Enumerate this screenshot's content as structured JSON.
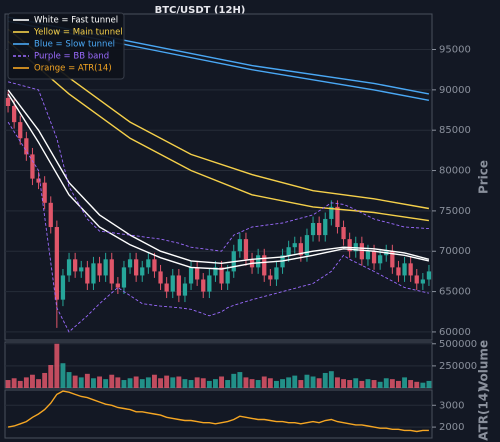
{
  "chart_data": [
    {
      "type": "candlestick",
      "title": "BTC/USDT (12H)",
      "ylabel": "Price",
      "ylim": [
        59000,
        99400
      ],
      "yticks": [
        60000,
        65000,
        70000,
        75000,
        80000,
        85000,
        90000,
        95000
      ],
      "grid": true,
      "up_color": "#26a69a",
      "down_color": "#e0566a",
      "legend": "upper left",
      "open": [
        89000,
        88000,
        86000,
        84000,
        82000,
        79000,
        78500,
        76000,
        73000,
        64000,
        67000,
        69000,
        67500,
        68000,
        66000,
        68500,
        67000,
        69000,
        66000,
        65500,
        68000,
        69000,
        67000,
        68000,
        69000,
        67500,
        66000,
        65000,
        67000,
        64500,
        66000,
        68000,
        66500,
        65000,
        67000,
        68000,
        66000,
        67500,
        70000,
        71500,
        69000,
        68000,
        69500,
        67000,
        66500,
        68000,
        69500,
        70500,
        71000,
        69500,
        72000,
        73500,
        72000,
        74000,
        75500,
        73000,
        71500,
        70000,
        71000,
        69000,
        70000,
        68500,
        69500,
        70000,
        68000,
        67000,
        68500,
        67000,
        66000,
        66500
      ],
      "high": [
        89800,
        88800,
        86800,
        84800,
        82800,
        79800,
        79300,
        76800,
        73800,
        67800,
        69800,
        69800,
        68800,
        68800,
        69300,
        69300,
        69800,
        69800,
        66800,
        68800,
        69800,
        69800,
        68800,
        69800,
        69800,
        68300,
        66800,
        67800,
        67800,
        66800,
        68800,
        68800,
        67300,
        67800,
        68800,
        68800,
        68300,
        70800,
        72300,
        72300,
        69800,
        70300,
        70300,
        67800,
        68800,
        70300,
        71300,
        71800,
        71800,
        72800,
        74300,
        74300,
        74800,
        76300,
        76300,
        73800,
        72300,
        71800,
        71800,
        70800,
        70800,
        70300,
        70800,
        70800,
        68800,
        69300,
        69300,
        67800,
        67300,
        68300
      ],
      "low": [
        87200,
        85200,
        83200,
        81200,
        78200,
        77700,
        75200,
        72200,
        60500,
        63200,
        66200,
        66700,
        66700,
        65200,
        65200,
        66200,
        66200,
        65200,
        64700,
        64700,
        67200,
        66200,
        66200,
        67200,
        66700,
        65200,
        64200,
        64200,
        63700,
        63700,
        65200,
        65700,
        64200,
        64200,
        66200,
        65200,
        65200,
        66700,
        69200,
        68200,
        67200,
        67200,
        66200,
        65700,
        65700,
        67200,
        68700,
        69700,
        68700,
        68700,
        71200,
        71200,
        71200,
        73200,
        72200,
        70700,
        69200,
        69200,
        68200,
        68200,
        67700,
        67700,
        68700,
        67200,
        66200,
        66200,
        66200,
        65200,
        65200,
        65700
      ],
      "close": [
        88000,
        86000,
        84000,
        82000,
        79000,
        78500,
        76000,
        73000,
        64000,
        67000,
        69000,
        67500,
        68000,
        66000,
        68500,
        67000,
        69000,
        66000,
        65500,
        68000,
        69000,
        67000,
        68000,
        69000,
        67500,
        66000,
        65000,
        67000,
        64500,
        66000,
        68000,
        66500,
        65000,
        67000,
        68000,
        66000,
        67500,
        70000,
        71500,
        69000,
        68000,
        69500,
        67000,
        66500,
        68000,
        69500,
        70500,
        71000,
        69500,
        72000,
        73500,
        72000,
        74000,
        75500,
        73000,
        71500,
        70000,
        71000,
        69000,
        70000,
        68500,
        69500,
        70000,
        68000,
        67000,
        68500,
        67000,
        66000,
        66500,
        67500
      ],
      "series": [
        {
          "name": "White = Fast tunnel",
          "color": "#ffffff",
          "dashed": false,
          "x": [
            0,
            5,
            10,
            15,
            20,
            25,
            30,
            35,
            40,
            45,
            50,
            55,
            60,
            65,
            69
          ],
          "upper": [
            90000,
            85000,
            78500,
            74500,
            72000,
            70000,
            68800,
            68500,
            69000,
            69300,
            70000,
            70500,
            70300,
            69800,
            69000
          ],
          "lower": [
            89500,
            83500,
            77000,
            73000,
            70800,
            69200,
            68000,
            67800,
            68500,
            68800,
            69500,
            70300,
            70000,
            69500,
            68800
          ]
        },
        {
          "name": "Yellow = Main tunnel",
          "color": "#f5d04a",
          "dashed": false,
          "x": [
            0,
            10,
            20,
            30,
            40,
            50,
            60,
            69
          ],
          "upper": [
            97500,
            91500,
            86000,
            82000,
            79500,
            77500,
            76500,
            75300
          ],
          "lower": [
            96000,
            89500,
            84000,
            80000,
            77000,
            75500,
            74800,
            73800
          ]
        },
        {
          "name": "Blue = Slow tunnel",
          "color": "#4aa8f5",
          "dashed": false,
          "x": [
            0,
            20,
            40,
            60,
            69
          ],
          "upper": [
            99000,
            96000,
            93000,
            90800,
            89500
          ],
          "lower": [
            98500,
            95500,
            92500,
            90000,
            88700
          ]
        },
        {
          "name": "Purple = BB band",
          "color": "#9b6bff",
          "dashed": true,
          "x": [
            0,
            5,
            8,
            10,
            13,
            15,
            18,
            20,
            22,
            25,
            28,
            30,
            33,
            35,
            36,
            37,
            40,
            45,
            50,
            53,
            55,
            56,
            60,
            65,
            69
          ],
          "upper": [
            91000,
            90000,
            84000,
            78000,
            74000,
            72500,
            72200,
            72000,
            71800,
            71500,
            71000,
            70500,
            70200,
            70000,
            71000,
            72000,
            73000,
            73500,
            74500,
            76000,
            75800,
            75500,
            74000,
            73000,
            72800
          ],
          "lower": [
            86000,
            80000,
            63000,
            60000,
            62000,
            63500,
            65500,
            64500,
            63500,
            63200,
            63000,
            62800,
            62000,
            62500,
            63000,
            63300,
            64000,
            65000,
            66000,
            67500,
            69500,
            69000,
            67500,
            65500,
            64800
          ]
        }
      ]
    },
    {
      "type": "bar",
      "ylabel": "Volume",
      "ylim": [
        0,
        520000
      ],
      "yticks": [
        {
          "value": 250000,
          "label": "250000"
        },
        {
          "value": 500000,
          "label": "500000"
        }
      ],
      "values": [
        90000,
        110000,
        80000,
        120000,
        150000,
        100000,
        170000,
        260000,
        500000,
        280000,
        180000,
        140000,
        120000,
        160000,
        110000,
        130000,
        100000,
        150000,
        120000,
        90000,
        110000,
        130000,
        100000,
        120000,
        150000,
        110000,
        140000,
        120000,
        130000,
        100000,
        90000,
        120000,
        110000,
        80000,
        100000,
        130000,
        90000,
        160000,
        180000,
        120000,
        100000,
        90000,
        130000,
        110000,
        80000,
        100000,
        120000,
        140000,
        90000,
        150000,
        130000,
        110000,
        170000,
        190000,
        120000,
        100000,
        90000,
        110000,
        80000,
        100000,
        90000,
        70000,
        110000,
        100000,
        80000,
        120000,
        90000,
        70000,
        60000,
        80000
      ]
    },
    {
      "type": "line",
      "ylabel": "ATR(14)",
      "ylim": [
        1500,
        3700
      ],
      "yticks": [
        2000,
        3000
      ],
      "series": [
        {
          "name": "Orange = ATR(14)",
          "color": "#f5a623",
          "values": [
            2000,
            2050,
            2150,
            2250,
            2450,
            2600,
            2800,
            3100,
            3500,
            3650,
            3600,
            3500,
            3400,
            3350,
            3250,
            3150,
            3050,
            3000,
            2900,
            2850,
            2800,
            2700,
            2700,
            2650,
            2600,
            2550,
            2450,
            2400,
            2350,
            2300,
            2300,
            2250,
            2200,
            2200,
            2150,
            2200,
            2250,
            2350,
            2500,
            2450,
            2400,
            2350,
            2350,
            2300,
            2250,
            2250,
            2200,
            2200,
            2150,
            2200,
            2250,
            2200,
            2300,
            2350,
            2250,
            2200,
            2150,
            2100,
            2100,
            2050,
            2000,
            1950,
            1950,
            1900,
            1900,
            1850,
            1850,
            1800,
            1850,
            1850
          ]
        }
      ]
    }
  ]
}
